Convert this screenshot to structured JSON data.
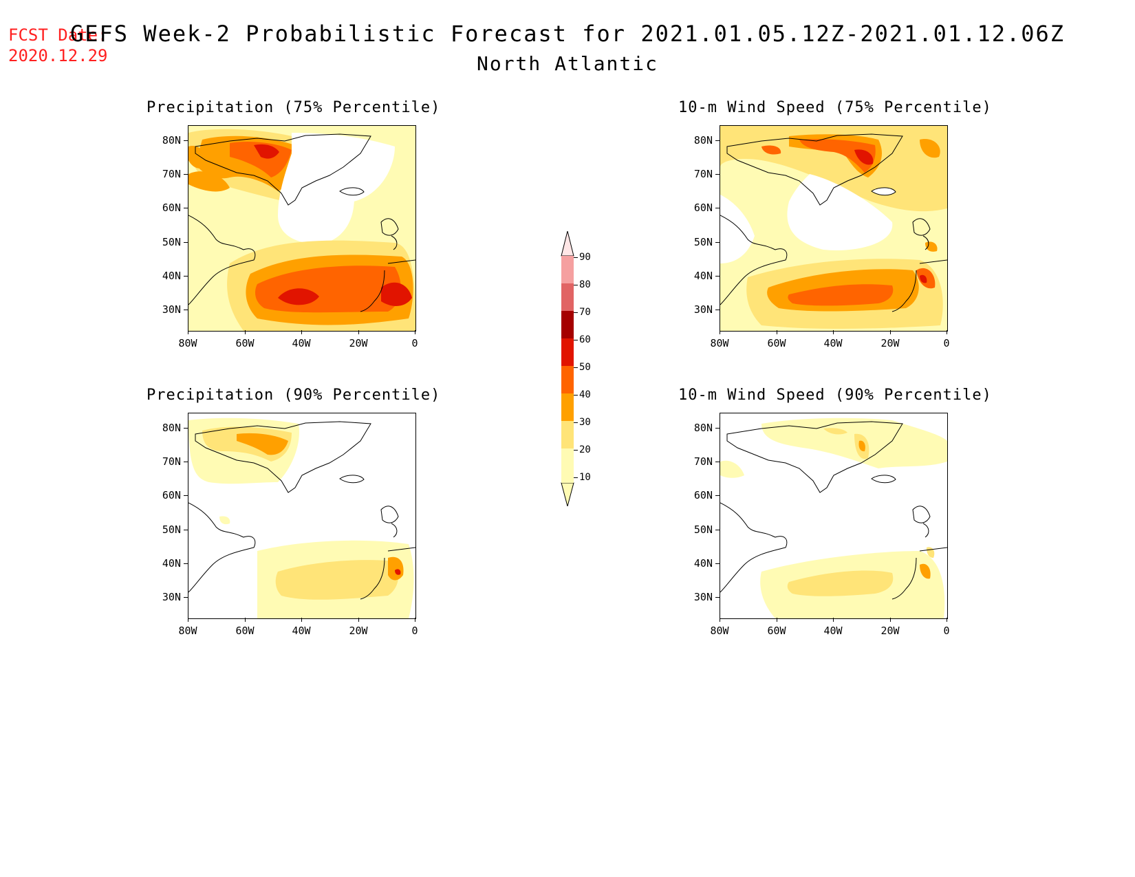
{
  "header": {
    "fcst_label": "FCST Date:",
    "fcst_date": "2020.12.29",
    "title": "GEFS Week-2 Probabilistic Forecast for 2021.01.05.12Z-2021.01.12.06Z",
    "region": "North Atlantic"
  },
  "axes": {
    "lat_labels": [
      "80N",
      "70N",
      "60N",
      "50N",
      "40N",
      "30N"
    ],
    "lon_labels": [
      "80W",
      "60W",
      "40W",
      "20W",
      "0"
    ]
  },
  "panels": [
    {
      "id": "precip75",
      "title": "Precipitation (75% Percentile)"
    },
    {
      "id": "precip90",
      "title": "Precipitation (90% Percentile)"
    },
    {
      "id": "wind75",
      "title": "10-m Wind Speed (75% Percentile)"
    },
    {
      "id": "wind90",
      "title": "10-m Wind Speed (90% Percentile)"
    }
  ],
  "colorbar": {
    "levels": [
      "10",
      "20",
      "30",
      "40",
      "50",
      "60",
      "70",
      "80",
      "90"
    ],
    "colors": [
      "#fffbb4",
      "#ffe478",
      "#ffa000",
      "#ff6400",
      "#e11400",
      "#a50000",
      "#e16464",
      "#f5a0a0",
      "#ffe6e6"
    ]
  }
}
